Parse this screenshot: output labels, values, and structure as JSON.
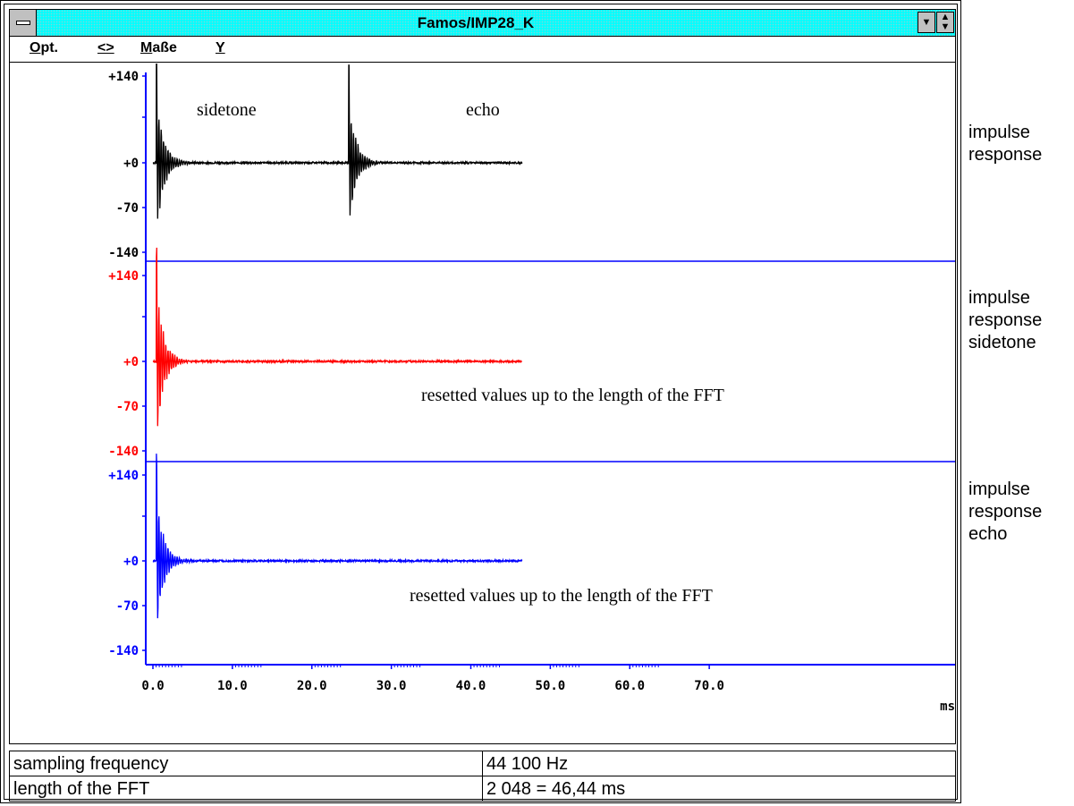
{
  "window": {
    "title": "Famos/IMP28_K",
    "menu": [
      {
        "label": "Opt.",
        "hot": "O",
        "rest": "pt."
      },
      {
        "label": "<>",
        "hot": "<>",
        "rest": ""
      },
      {
        "label": "Maße",
        "hot": "M",
        "rest": "aße"
      },
      {
        "label": "Y",
        "hot": "Y",
        "rest": ""
      }
    ]
  },
  "chart_data": [
    {
      "type": "line",
      "title": "",
      "color": "#000000",
      "y_ticks": [
        "+140",
        "+0",
        "-70",
        "-140"
      ],
      "ylim": [
        -140,
        140
      ],
      "x_range": [
        0,
        46.44
      ],
      "series": [],
      "annotations": [
        "sidetone",
        "echo"
      ]
    },
    {
      "type": "line",
      "color": "#ff0000",
      "y_ticks": [
        "+140",
        "+0",
        "-70",
        "-140"
      ],
      "ylim": [
        -140,
        140
      ],
      "x_range": [
        0,
        46.44
      ],
      "series": [],
      "annotations": [
        "resetted values up to the length of the FFT"
      ]
    },
    {
      "type": "line",
      "color": "#0000ff",
      "y_ticks": [
        "+140",
        "+0",
        "-70",
        "-140"
      ],
      "ylim": [
        -140,
        140
      ],
      "x_range": [
        0,
        46.44
      ],
      "series": [],
      "annotations": [
        "resetted values up to the length of the FFT"
      ]
    }
  ],
  "x_axis": {
    "ticks": [
      "0.0",
      "10.0",
      "20.0",
      "30.0",
      "40.0",
      "50.0",
      "60.0",
      "70.0"
    ],
    "tick_values": [
      0,
      10,
      20,
      30,
      40,
      50,
      60,
      70
    ],
    "unit": "ms"
  },
  "side_labels": [
    "impulse\nresponse",
    "impulse\nresponse\nsidetone",
    "impulse\nresponse\necho"
  ],
  "annotations": {
    "sidetone": "sidetone",
    "echo": "echo",
    "reset_red": "resetted values up to the length of the FFT",
    "reset_blue": "resetted values up to the length of the FFT"
  },
  "info_table": [
    {
      "label": "sampling frequency",
      "value": "44 100 Hz"
    },
    {
      "label": "length of the FFT",
      "value": "2 048 = 46,44 ms"
    }
  ],
  "colors": {
    "axis": "#0000ff",
    "trace1": "#000000",
    "trace2": "#ff0000",
    "trace3": "#0000ff",
    "titlebar": "#00ffff"
  }
}
